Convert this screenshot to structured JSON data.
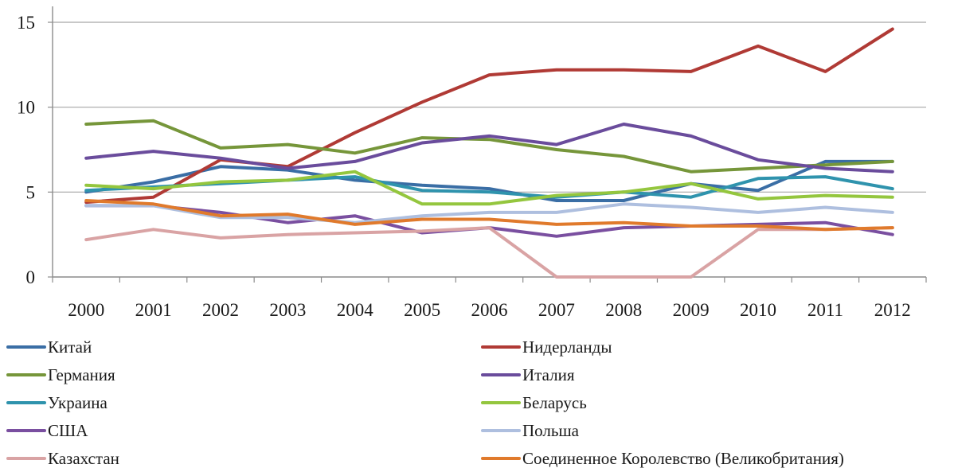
{
  "chart_data": {
    "type": "line",
    "title": "",
    "xlabel": "",
    "ylabel": "",
    "categories": [
      "2000",
      "2001",
      "2002",
      "2003",
      "2004",
      "2005",
      "2006",
      "2007",
      "2008",
      "2009",
      "2010",
      "2011",
      "2012"
    ],
    "ylim": [
      0,
      15
    ],
    "yticks": [
      "0",
      "5",
      "10",
      "15"
    ],
    "grid": "horizontal",
    "legend_position": "bottom",
    "series": [
      {
        "name": "Китай",
        "color": "#3a6ea5",
        "values": [
          5.0,
          5.6,
          6.5,
          6.3,
          5.7,
          5.4,
          5.2,
          4.5,
          4.5,
          5.5,
          5.1,
          6.8,
          6.8
        ]
      },
      {
        "name": "Нидерланды",
        "color": "#b03a35",
        "values": [
          4.4,
          4.7,
          6.9,
          6.5,
          8.5,
          10.3,
          11.9,
          12.2,
          12.2,
          12.1,
          13.6,
          12.1,
          14.6
        ]
      },
      {
        "name": "Германия",
        "color": "#76963a",
        "values": [
          9.0,
          9.2,
          7.6,
          7.8,
          7.3,
          8.2,
          8.1,
          7.5,
          7.1,
          6.2,
          6.4,
          6.6,
          6.8
        ]
      },
      {
        "name": "Италия",
        "color": "#6a4c9c",
        "values": [
          7.0,
          7.4,
          7.0,
          6.4,
          6.8,
          7.9,
          8.3,
          7.8,
          9.0,
          8.3,
          6.9,
          6.4,
          6.2
        ]
      },
      {
        "name": "Украина",
        "color": "#2f93ad",
        "values": [
          5.1,
          5.3,
          5.5,
          5.7,
          5.9,
          5.1,
          5.0,
          4.7,
          5.0,
          4.7,
          5.8,
          5.9,
          5.2
        ]
      },
      {
        "name": "Беларусь",
        "color": "#94c63e",
        "values": [
          5.4,
          5.2,
          5.6,
          5.7,
          6.2,
          4.3,
          4.3,
          4.8,
          5.0,
          5.5,
          4.6,
          4.8,
          4.7
        ]
      },
      {
        "name": "США",
        "color": "#7a4fa0",
        "values": [
          4.2,
          4.2,
          3.8,
          3.2,
          3.6,
          2.6,
          2.9,
          2.4,
          2.9,
          3.0,
          3.1,
          3.2,
          2.5
        ]
      },
      {
        "name": "Польша",
        "color": "#aebfdf",
        "values": [
          4.2,
          4.2,
          3.5,
          3.5,
          3.2,
          3.6,
          3.8,
          3.8,
          4.3,
          4.1,
          3.8,
          4.1,
          3.8
        ]
      },
      {
        "name": "Казахстан",
        "color": "#d9a3a4",
        "values": [
          2.2,
          2.8,
          2.3,
          2.5,
          2.6,
          2.7,
          2.9,
          0,
          0,
          0,
          2.8,
          2.8,
          2.9
        ]
      },
      {
        "name": "Соединенное Королевство (Великобритания)",
        "color": "#e07a2c",
        "values": [
          4.5,
          4.3,
          3.6,
          3.7,
          3.1,
          3.4,
          3.4,
          3.1,
          3.2,
          3.0,
          3.0,
          2.8,
          2.9
        ]
      }
    ]
  }
}
